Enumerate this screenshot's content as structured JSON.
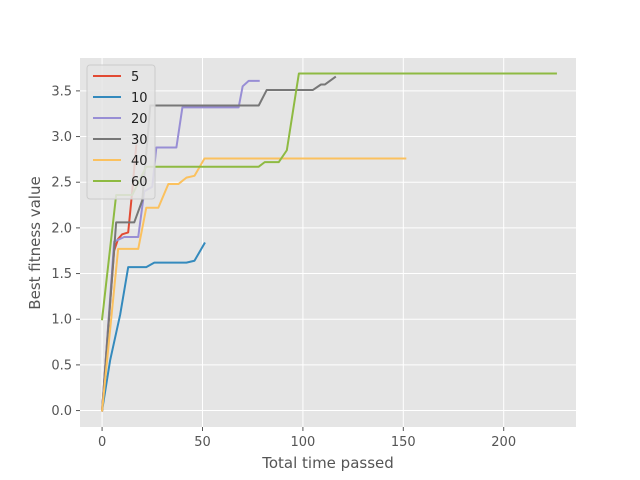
{
  "chart_data": {
    "type": "line",
    "title": "",
    "xlabel": "Total time passed",
    "ylabel": "Best fitness value",
    "xlim": [
      -11,
      236
    ],
    "ylim": [
      -0.18,
      3.86
    ],
    "xticks": [
      0,
      50,
      100,
      150,
      200
    ],
    "yticks": [
      0.0,
      0.5,
      1.0,
      1.5,
      2.0,
      2.5,
      3.0,
      3.5
    ],
    "ytick_labels": [
      "0.0",
      "0.5",
      "1.0",
      "1.5",
      "2.0",
      "2.5",
      "3.0",
      "3.5"
    ],
    "grid": true,
    "legend_position": "top-left",
    "colors": {
      "background": "#e5e5e5",
      "grid": "#ffffff"
    },
    "series": [
      {
        "name": "5",
        "color": "#e24a33",
        "points": [
          [
            0,
            0
          ],
          [
            3,
            0.9
          ],
          [
            6,
            1.75
          ],
          [
            8,
            1.88
          ],
          [
            10,
            1.93
          ],
          [
            13,
            1.95
          ],
          [
            15,
            2.4
          ],
          [
            17,
            2.9
          ]
        ]
      },
      {
        "name": "10",
        "color": "#348abd",
        "points": [
          [
            0,
            0
          ],
          [
            4,
            0.55
          ],
          [
            9,
            1.05
          ],
          [
            13,
            1.57
          ],
          [
            22,
            1.57
          ],
          [
            26,
            1.62
          ],
          [
            42,
            1.62
          ],
          [
            46,
            1.64
          ],
          [
            51,
            1.83
          ]
        ]
      },
      {
        "name": "20",
        "color": "#988ed5",
        "points": [
          [
            0,
            0
          ],
          [
            6,
            1.85
          ],
          [
            11,
            1.9
          ],
          [
            18,
            1.9
          ],
          [
            21,
            2.4
          ],
          [
            25,
            2.45
          ],
          [
            27,
            2.88
          ],
          [
            37,
            2.88
          ],
          [
            40,
            3.32
          ],
          [
            68,
            3.32
          ],
          [
            70,
            3.55
          ],
          [
            73,
            3.61
          ],
          [
            78,
            3.61
          ]
        ]
      },
      {
        "name": "30",
        "color": "#777777",
        "points": [
          [
            0,
            0
          ],
          [
            7,
            2.06
          ],
          [
            16,
            2.06
          ],
          [
            20,
            2.3
          ],
          [
            24,
            3.34
          ],
          [
            78,
            3.34
          ],
          [
            82,
            3.51
          ],
          [
            105,
            3.51
          ],
          [
            109,
            3.57
          ],
          [
            111,
            3.57
          ],
          [
            116,
            3.65
          ]
        ]
      },
      {
        "name": "40",
        "color": "#fbc15e",
        "points": [
          [
            0,
            0
          ],
          [
            8,
            1.77
          ],
          [
            18,
            1.77
          ],
          [
            22,
            2.22
          ],
          [
            28,
            2.22
          ],
          [
            33,
            2.48
          ],
          [
            38,
            2.48
          ],
          [
            42,
            2.55
          ],
          [
            46,
            2.57
          ],
          [
            51,
            2.76
          ],
          [
            151,
            2.76
          ]
        ]
      },
      {
        "name": "60",
        "color": "#8eba42",
        "points": [
          [
            0,
            1.0
          ],
          [
            7,
            2.36
          ],
          [
            15,
            2.36
          ],
          [
            22,
            2.67
          ],
          [
            78,
            2.67
          ],
          [
            81,
            2.72
          ],
          [
            88,
            2.72
          ],
          [
            92,
            2.85
          ],
          [
            98,
            3.69
          ],
          [
            226,
            3.69
          ]
        ]
      }
    ]
  }
}
